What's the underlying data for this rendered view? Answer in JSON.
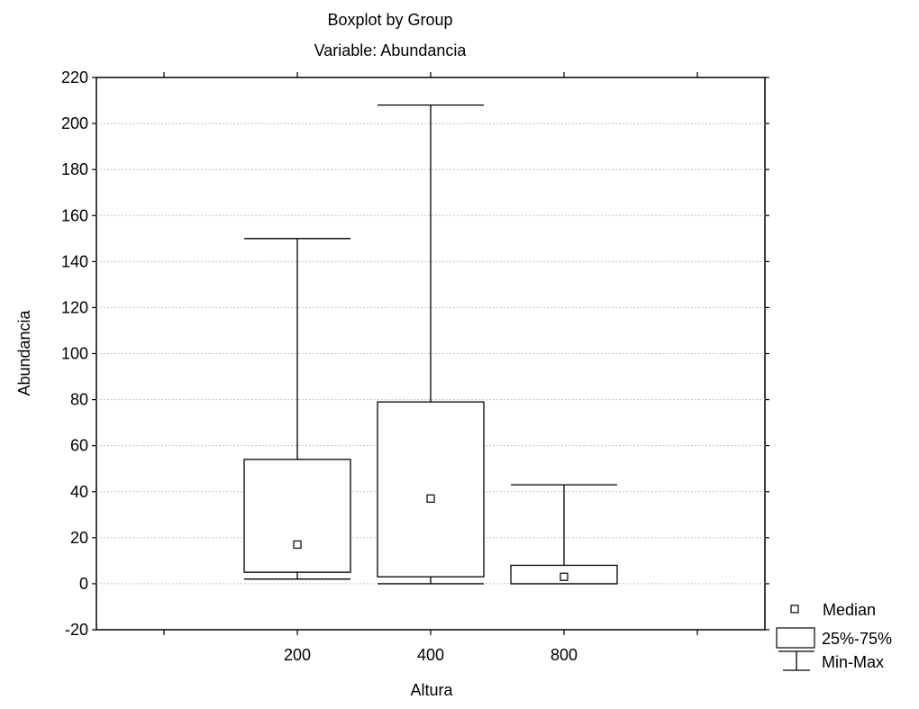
{
  "chart_data": {
    "type": "boxplot",
    "title": "Boxplot by Group",
    "subtitle": "Variable: Abundancia",
    "xlabel": "Altura",
    "ylabel": "Abundancia",
    "ylim": [
      -20,
      220
    ],
    "yticks": [
      -20,
      0,
      20,
      40,
      60,
      80,
      100,
      120,
      140,
      160,
      180,
      200,
      220
    ],
    "categories": [
      "200",
      "400",
      "800"
    ],
    "grid": true,
    "legend_position": "bottom-right",
    "legend": {
      "median": "Median",
      "box": "25%-75%",
      "whisker": "Min-Max"
    },
    "groups": [
      {
        "label": "200",
        "min": 2,
        "q1": 5,
        "median": 17,
        "q3": 54,
        "max": 150
      },
      {
        "label": "400",
        "min": 0,
        "q1": 3,
        "median": 37,
        "q3": 79,
        "max": 208
      },
      {
        "label": "800",
        "min": 0,
        "q1": 0,
        "median": 3,
        "q3": 8,
        "max": 43
      }
    ],
    "colors": {
      "axis": "#000000",
      "grid": "#c0c0c0",
      "box_fill": "#ffffff"
    }
  }
}
